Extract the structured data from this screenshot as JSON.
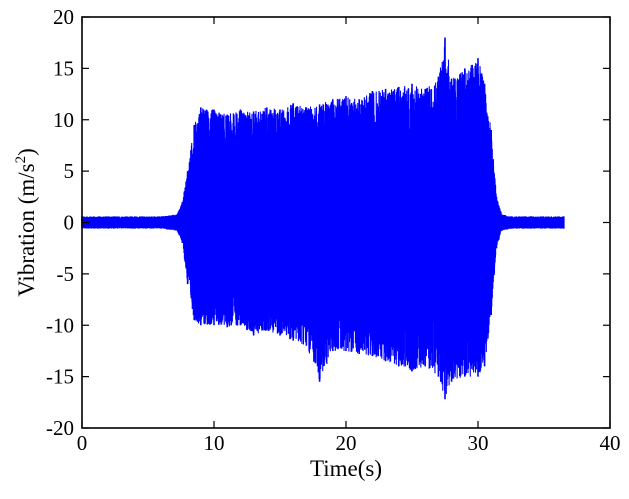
{
  "chart_data": {
    "type": "line",
    "xlabel": "Time(s)",
    "ylabel_main": "Vibration (m/s",
    "ylabel_sup": "2",
    "ylabel_end": ")",
    "xlim": [
      0,
      40
    ],
    "ylim": [
      -20,
      20
    ],
    "xticks": [
      0,
      10,
      20,
      30,
      40
    ],
    "yticks": [
      -20,
      -15,
      -10,
      -5,
      0,
      5,
      10,
      15,
      20
    ],
    "grid": false,
    "legend": "none",
    "series": [
      {
        "color": "#0000ff",
        "envelope": {
          "t": [
            0,
            2,
            4,
            6,
            7.2,
            7.6,
            8.0,
            8.5,
            9,
            10,
            11,
            12,
            13,
            14,
            15,
            16,
            17,
            18,
            19,
            20,
            21,
            22,
            23,
            24,
            25,
            26,
            27,
            27.5,
            28,
            29,
            30,
            30.5,
            31.0,
            31.4,
            31.8,
            32.5,
            34,
            36.5
          ],
          "upper": [
            0.6,
            0.6,
            0.6,
            0.6,
            0.8,
            2.0,
            5.0,
            9.5,
            11.2,
            11.0,
            10.5,
            11.0,
            10.8,
            11.2,
            11.0,
            11.6,
            11.2,
            11.5,
            12.0,
            12.3,
            12.0,
            12.8,
            13.0,
            13.2,
            13.5,
            13.0,
            14.2,
            18.0,
            14.0,
            15.0,
            16.0,
            13.5,
            9.0,
            2.5,
            0.8,
            0.6,
            0.6,
            0.6
          ],
          "lower": [
            -0.6,
            -0.6,
            -0.6,
            -0.6,
            -0.8,
            -2.0,
            -6.0,
            -9.5,
            -10.0,
            -10.0,
            -10.2,
            -10.0,
            -11.0,
            -10.5,
            -11.0,
            -11.5,
            -12.0,
            -15.5,
            -12.5,
            -12.5,
            -12.8,
            -13.0,
            -13.5,
            -14.0,
            -14.5,
            -14.0,
            -15.0,
            -17.2,
            -15.5,
            -15.0,
            -15.0,
            -14.0,
            -9.0,
            -2.5,
            -0.8,
            -0.6,
            -0.6,
            -0.6
          ]
        }
      }
    ]
  }
}
